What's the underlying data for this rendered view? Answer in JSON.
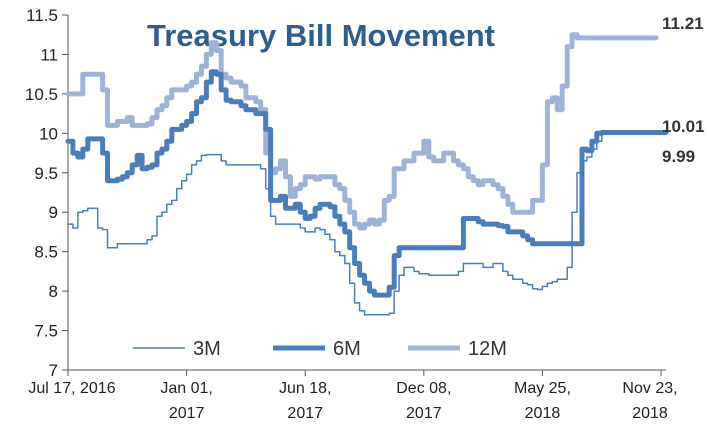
{
  "chart_data": {
    "type": "line",
    "title": "Treasury Bill Movement",
    "xlabel": "",
    "ylabel": "",
    "ylim": [
      7,
      11.5
    ],
    "yticks": [
      7,
      7.5,
      8,
      8.5,
      9,
      9.5,
      10,
      10.5,
      11,
      11.5
    ],
    "ytick_labels": [
      "7",
      "7.5",
      "8",
      "8.5",
      "9",
      "9.5",
      "10",
      "10.5",
      "11",
      "11.5"
    ],
    "xlim": [
      0,
      121
    ],
    "x_ticks": [
      {
        "x": 0,
        "line1": "Jul 17, 2016",
        "line2": ""
      },
      {
        "x": 24,
        "line1": "Jan 01,",
        "line2": "2017"
      },
      {
        "x": 48,
        "line1": "Jun 18,",
        "line2": "2017"
      },
      {
        "x": 72,
        "line1": "Dec 08,",
        "line2": "2017"
      },
      {
        "x": 96,
        "line1": "May 25,",
        "line2": "2018"
      },
      {
        "x": 120,
        "line1": "Nov 23,",
        "line2": "2018"
      }
    ],
    "grid": false,
    "legend_position": "bottom",
    "series": [
      {
        "name": "3M",
        "color": "#4a7ebb",
        "style": "thin",
        "values": [
          8.85,
          8.8,
          9.0,
          9.02,
          9.05,
          9.05,
          8.8,
          8.78,
          8.55,
          8.55,
          8.6,
          8.6,
          8.6,
          8.6,
          8.6,
          8.6,
          8.65,
          8.7,
          8.95,
          9.0,
          9.1,
          9.15,
          9.3,
          9.4,
          9.48,
          9.6,
          9.65,
          9.72,
          9.73,
          9.73,
          9.73,
          9.65,
          9.6,
          9.6,
          9.6,
          9.6,
          9.6,
          9.6,
          9.6,
          9.55,
          9.3,
          8.95,
          8.85,
          8.85,
          8.85,
          8.85,
          8.85,
          8.8,
          8.75,
          8.75,
          8.8,
          8.78,
          8.72,
          8.65,
          8.5,
          8.45,
          8.35,
          8.1,
          7.85,
          7.75,
          7.7,
          7.7,
          7.7,
          7.7,
          7.7,
          7.72,
          8.0,
          8.2,
          8.3,
          8.3,
          8.25,
          8.22,
          8.22,
          8.2,
          8.2,
          8.2,
          8.2,
          8.2,
          8.2,
          8.25,
          8.35,
          8.35,
          8.35,
          8.35,
          8.3,
          8.3,
          8.35,
          8.35,
          8.25,
          8.2,
          8.15,
          8.15,
          8.1,
          8.08,
          8.03,
          8.02,
          8.06,
          8.1,
          8.12,
          8.15,
          8.15,
          8.3,
          9.0,
          9.5,
          9.65,
          9.7,
          9.8,
          9.9,
          9.99,
          10.0,
          10.0,
          10.0,
          10.0,
          10.0,
          9.99,
          9.99,
          9.99,
          9.99,
          9.99,
          9.99,
          9.99,
          9.99
        ]
      },
      {
        "name": "6M",
        "color": "#4a7ebb",
        "style": "thick",
        "values": [
          9.9,
          9.75,
          9.7,
          9.8,
          9.93,
          9.93,
          9.93,
          9.75,
          9.4,
          9.4,
          9.42,
          9.45,
          9.5,
          9.6,
          9.72,
          9.55,
          9.57,
          9.6,
          9.75,
          9.8,
          9.9,
          10.05,
          10.05,
          10.1,
          10.15,
          10.25,
          10.4,
          10.45,
          10.65,
          10.78,
          10.75,
          10.55,
          10.42,
          10.4,
          10.4,
          10.35,
          10.3,
          10.3,
          10.25,
          10.25,
          10.05,
          9.15,
          9.15,
          9.2,
          9.05,
          9.05,
          9.1,
          9.0,
          8.92,
          8.95,
          9.05,
          9.1,
          9.1,
          9.07,
          8.95,
          8.85,
          8.75,
          8.55,
          8.35,
          8.2,
          8.1,
          8.0,
          7.95,
          7.95,
          7.95,
          8.05,
          8.45,
          8.55,
          8.55,
          8.55,
          8.55,
          8.55,
          8.55,
          8.55,
          8.55,
          8.55,
          8.55,
          8.55,
          8.55,
          8.55,
          8.92,
          8.92,
          8.92,
          8.88,
          8.85,
          8.85,
          8.85,
          8.83,
          8.82,
          8.75,
          8.75,
          8.75,
          8.7,
          8.65,
          8.6,
          8.6,
          8.6,
          8.6,
          8.6,
          8.6,
          8.6,
          8.6,
          8.6,
          8.6,
          9.8,
          9.78,
          9.9,
          10.0,
          10.01,
          10.01,
          10.01,
          10.01,
          10.01,
          10.01,
          10.01,
          10.01,
          10.01,
          10.01,
          10.01,
          10.01,
          10.01,
          10.01
        ]
      },
      {
        "name": "12M",
        "color": "#9fb3d9",
        "style": "thick",
        "values": [
          10.5,
          10.5,
          10.5,
          10.75,
          10.75,
          10.75,
          10.75,
          10.55,
          10.1,
          10.1,
          10.15,
          10.15,
          10.2,
          10.1,
          10.1,
          10.1,
          10.12,
          10.2,
          10.3,
          10.35,
          10.45,
          10.55,
          10.55,
          10.55,
          10.6,
          10.65,
          10.75,
          10.85,
          11.0,
          11.15,
          11.05,
          10.75,
          10.7,
          10.65,
          10.65,
          10.6,
          10.45,
          10.45,
          10.4,
          10.3,
          9.75,
          9.5,
          9.55,
          9.65,
          9.45,
          9.2,
          9.3,
          9.35,
          9.45,
          9.45,
          9.42,
          9.45,
          9.45,
          9.45,
          9.35,
          9.3,
          9.15,
          9.0,
          8.85,
          8.8,
          8.85,
          8.9,
          8.85,
          8.9,
          9.15,
          9.2,
          9.55,
          9.55,
          9.65,
          9.65,
          9.75,
          9.75,
          9.9,
          9.7,
          9.65,
          9.65,
          9.75,
          9.75,
          9.65,
          9.6,
          9.55,
          9.45,
          9.4,
          9.35,
          9.4,
          9.4,
          9.35,
          9.3,
          9.2,
          9.1,
          9.0,
          9.0,
          9.0,
          9.0,
          9.15,
          9.15,
          9.6,
          10.4,
          10.45,
          10.3,
          10.6,
          11.1,
          11.25,
          11.21,
          11.21,
          11.21,
          11.21,
          11.21,
          11.21,
          11.21,
          11.21,
          11.21,
          11.21,
          11.21,
          11.21,
          11.21,
          11.21,
          11.21,
          11.21,
          11.21
        ]
      }
    ],
    "end_labels": [
      {
        "series": "12M",
        "text": "11.21"
      },
      {
        "series": "6M",
        "text": "10.01"
      },
      {
        "series": "3M",
        "text": "9.99"
      }
    ]
  }
}
